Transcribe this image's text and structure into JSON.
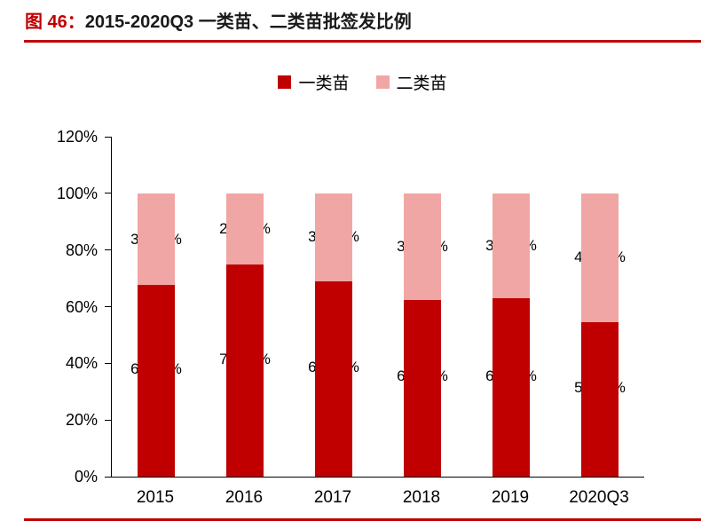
{
  "figure": {
    "title_prefix": "图 46：",
    "title": "2015-2020Q3 一类苗、二类苗批签发比例"
  },
  "colors": {
    "class1": "#c00000",
    "class2": "#f0a6a4",
    "accent_line": "#c00000",
    "axis": "#000000",
    "label_text": "#000000"
  },
  "chart_data": {
    "type": "bar",
    "stacked": true,
    "title": "图 46：2015-2020Q3 一类苗、二类苗批签发比例",
    "categories": [
      "2015",
      "2016",
      "2017",
      "2018",
      "2019",
      "2020Q3"
    ],
    "series": [
      {
        "name": "一类苗",
        "color_key": "class1",
        "values": [
          67.6,
          74.87,
          68.95,
          62.49,
          62.87,
          54.67
        ],
        "labels": [
          "67.60%",
          "74.87%",
          "68.95%",
          "62.49%",
          "62.87%",
          "54.67%"
        ]
      },
      {
        "name": "二类苗",
        "color_key": "class2",
        "values": [
          32.4,
          25.13,
          31.05,
          37.51,
          37.13,
          45.33
        ],
        "labels": [
          "32.40%",
          "25.13%",
          "31.05%",
          "37.51%",
          "37.13%",
          "45.33%"
        ]
      }
    ],
    "xlabel": "",
    "ylabel": "",
    "ylim": [
      0,
      120
    ],
    "ytick_step": 20,
    "ytick_labels": [
      "0%",
      "20%",
      "40%",
      "60%",
      "80%",
      "100%",
      "120%"
    ],
    "legend_position": "top-center",
    "grid": false
  }
}
